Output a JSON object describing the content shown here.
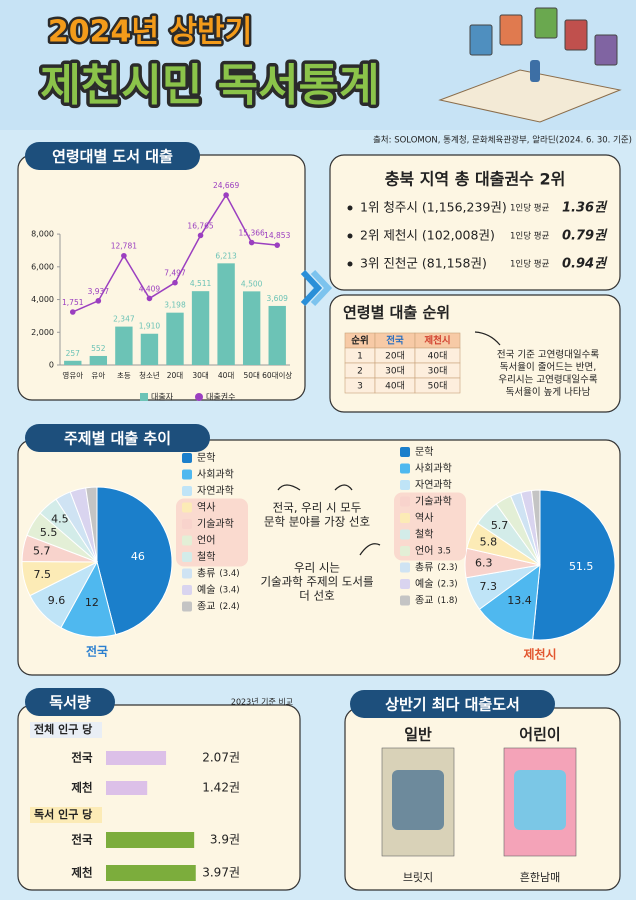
{
  "header": {
    "subtitle": "2024년 상반기",
    "title": "제천시민 독서통계"
  },
  "source": "출처: SOLOMON, 통계청, 문화체육관광부, 알라딘(2024. 6. 30. 기준)",
  "sections": {
    "age_loans": "연령대별 도서 대출",
    "topics": "주제별 대출 추이",
    "reading": "독서량",
    "best": "상반기 최다 대출도서"
  },
  "region_rank": {
    "title": "충북 지역 총 대출권수 2위",
    "items": [
      {
        "label": "1위 청주시 (1,156,239권)",
        "avg_label": "1인당 평균",
        "avg": "1.36권"
      },
      {
        "label": "2위 제천시 (102,008권)",
        "avg_label": "1인당 평균",
        "avg": "0.79권"
      },
      {
        "label": "3위 진천군 (81,158권)",
        "avg_label": "1인당 평균",
        "avg": "0.94권"
      }
    ]
  },
  "age_rank": {
    "title": "연령별 대출 순위",
    "table": {
      "header": [
        "순위",
        "전국",
        "제천시"
      ],
      "rows": [
        [
          "1",
          "20대",
          "40대"
        ],
        [
          "2",
          "30대",
          "30대"
        ],
        [
          "3",
          "40대",
          "50대"
        ]
      ]
    },
    "note": [
      "전국 기준 고연령대일수록",
      "독서율이 줄어드는 반면,",
      "우리시는 고연령대일수록",
      "독서율이 높게 나타남"
    ]
  },
  "topic_notes": [
    [
      "전국, 우리 시 모두",
      "문학 분야를 가장 선호"
    ],
    [
      "우리 시는",
      "기술과학 주제의 도서를",
      "더 선호"
    ]
  ],
  "reading_note": "2023년 기준 비교",
  "best_books": [
    {
      "category": "일반",
      "title": "브릿지"
    },
    {
      "category": "어린이",
      "title": "흔한남매"
    }
  ],
  "chart_data": [
    {
      "type": "combo",
      "categories": [
        "영유아",
        "유아",
        "초등",
        "청소년",
        "20대",
        "30대",
        "40대",
        "50대",
        "60대이상"
      ],
      "series": [
        {
          "name": "대출자",
          "type": "bar",
          "color": "#6cc3b6",
          "values": [
            257,
            552,
            2347,
            1910,
            3198,
            4511,
            6213,
            4500,
            3609
          ],
          "value_labels": [
            "257",
            "552",
            "2,347",
            "1,910",
            "3,198",
            "4,511",
            "6,213",
            "4,500",
            "3,609"
          ]
        },
        {
          "name": "대출권수",
          "type": "line",
          "axis": "y2",
          "color": "#9b3fc0",
          "values": [
            1751,
            3937,
            12781,
            4409,
            7497,
            16765,
            24669,
            15366,
            14853
          ],
          "value_labels": [
            "1,751",
            "3,937",
            "12,781",
            "4,409",
            "7,497",
            "16,765",
            "24,669",
            "15,366",
            "14,853"
          ]
        }
      ],
      "ylim": [
        0,
        11000
      ],
      "yticks": [
        0,
        {
          "value": 2000,
          "label": "2,000"
        },
        {
          "value": 4000,
          "label": "4,000"
        },
        {
          "value": 6000,
          "label": "6,000"
        },
        {
          "value": 8000,
          "label": "8,000"
        }
      ],
      "y2lim": [
        -8640,
        26650
      ],
      "grid": false
    },
    {
      "type": "pie",
      "title": "전국",
      "categories": [
        "문학",
        "사회과학",
        "자연과학",
        "역사",
        "기술과학",
        "언어",
        "철학",
        "총류",
        "예술",
        "종교"
      ],
      "values": [
        46,
        12,
        9.6,
        7.5,
        5.7,
        5.5,
        4.5,
        3.4,
        3.4,
        2.4
      ],
      "value_labels": [
        "46",
        "12",
        "9.6",
        "7.5",
        "5.7",
        "5.5",
        "4.5",
        "(3.4)",
        "(3.4)",
        "(2.4)"
      ],
      "colors": [
        "#1b7fcb",
        "#4fb8ef",
        "#bfe4f7",
        "#fcebb6",
        "#f8d3cc",
        "#e3efd6",
        "#d3ece9",
        "#cfe3f3",
        "#d9d4ef",
        "#c4c4c4"
      ]
    },
    {
      "type": "pie",
      "title": "제천시",
      "categories": [
        "문학",
        "사회과학",
        "자연과학",
        "기술과학",
        "역사",
        "철학",
        "언어",
        "총류",
        "예술",
        "종교"
      ],
      "values": [
        51.5,
        13.4,
        7.3,
        6.3,
        5.8,
        5.7,
        3.5,
        2.3,
        2.3,
        1.8
      ],
      "value_labels": [
        "51.5",
        "13.4",
        "7.3",
        "6.3",
        "5.8",
        "5.7",
        "3.5",
        "(2.3)",
        "(2.3)",
        "(1.8)"
      ],
      "colors": [
        "#1b7fcb",
        "#4fb8ef",
        "#bfe4f7",
        "#f8d3cc",
        "#fcebb6",
        "#d3ece9",
        "#e3efd6",
        "#cfe3f3",
        "#d9d4ef",
        "#c4c4c4"
      ]
    },
    {
      "type": "hbar",
      "title": "전체 인구 당",
      "categories": [
        "전국",
        "제천"
      ],
      "values": [
        2.07,
        1.42
      ],
      "value_labels": [
        "2.07권",
        "1.42권"
      ],
      "color": "#dcc0e8",
      "xlim": [
        0,
        4.48
      ]
    },
    {
      "type": "hbar",
      "title": "독서 인구 당",
      "categories": [
        "전국",
        "제천"
      ],
      "values": [
        3.9,
        3.97
      ],
      "value_labels": [
        "3.9권",
        "3.97권"
      ],
      "color": "#7cad3c",
      "xlim": [
        0,
        5.75
      ]
    }
  ]
}
